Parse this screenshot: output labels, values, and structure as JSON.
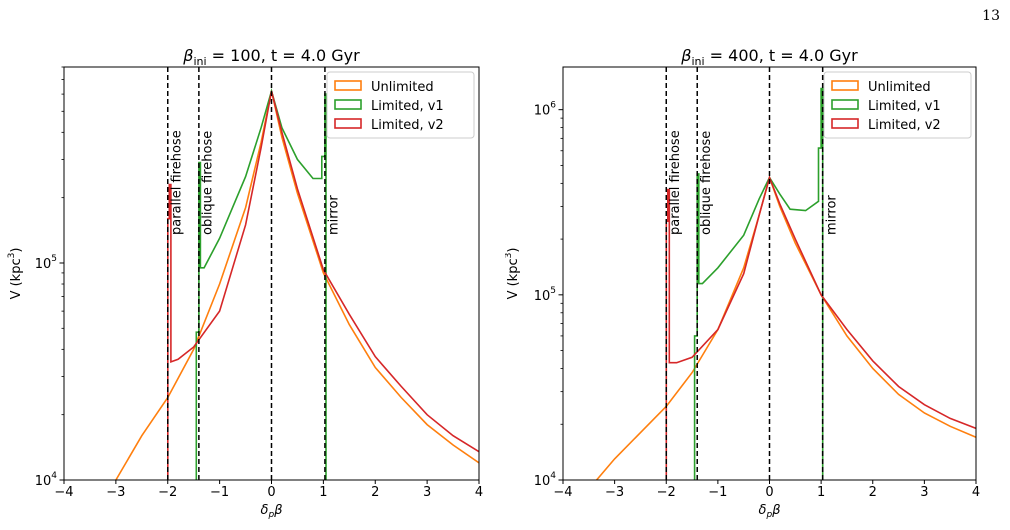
{
  "page_number": "13",
  "chart_data": [
    {
      "type": "line",
      "title_symbol": "β",
      "title_sub": "ini",
      "title_rest": " = 100, t = 4.0 Gyr",
      "xlabel_main": "δ",
      "xlabel_sub": "p",
      "xlabel_after": "β",
      "ylabel_main": "V (kpc",
      "ylabel_sup": "3",
      "ylabel_after": ")",
      "yscale": "log",
      "xlim": [
        -4,
        4
      ],
      "ylim": [
        10000,
        800000
      ],
      "xticks": [
        "−4",
        "−3",
        "−2",
        "−1",
        "0",
        "1",
        "2",
        "3",
        "4"
      ],
      "ytick_labels": [
        {
          "value": 10000,
          "base": "10",
          "exp": "4"
        },
        {
          "value": 100000,
          "base": "10",
          "exp": "5"
        }
      ],
      "legend_position": "top-right",
      "vlines": [
        {
          "x": -2,
          "label": "parallel firehose"
        },
        {
          "x": -1.4,
          "label": "oblique firehose"
        },
        {
          "x": 0,
          "label": ""
        },
        {
          "x": 1.03,
          "label": "mirror"
        }
      ],
      "series": [
        {
          "name": "Unlimited",
          "color": "#ff7f0e",
          "points": [
            [
              -3.0,
              10000
            ],
            [
              -2.5,
              16000
            ],
            [
              -2.0,
              24000
            ],
            [
              -1.5,
              40000
            ],
            [
              -1.0,
              80000
            ],
            [
              -0.5,
              180000
            ],
            [
              -0.2,
              360000
            ],
            [
              0.0,
              620000
            ],
            [
              0.2,
              380000
            ],
            [
              0.5,
              210000
            ],
            [
              1.0,
              90000
            ],
            [
              1.5,
              52000
            ],
            [
              2.0,
              33000
            ],
            [
              2.5,
              24000
            ],
            [
              3.0,
              18000
            ],
            [
              3.5,
              14500
            ],
            [
              4.0,
              12000
            ]
          ]
        },
        {
          "name": "Limited, v1",
          "color": "#2ca02c",
          "points": [
            [
              -1.45,
              10000
            ],
            [
              -1.45,
              48000
            ],
            [
              -1.4,
              48000
            ],
            [
              -1.4,
              290000
            ],
            [
              -1.37,
              290000
            ],
            [
              -1.37,
              95000
            ],
            [
              -1.3,
              95000
            ],
            [
              -1.0,
              130000
            ],
            [
              -0.5,
              250000
            ],
            [
              -0.2,
              420000
            ],
            [
              0.0,
              620000
            ],
            [
              0.2,
              420000
            ],
            [
              0.5,
              300000
            ],
            [
              0.8,
              245000
            ],
            [
              0.97,
              245000
            ],
            [
              0.97,
              310000
            ],
            [
              1.03,
              310000
            ],
            [
              1.03,
              600000
            ],
            [
              1.05,
              600000
            ],
            [
              1.05,
              10000
            ]
          ]
        },
        {
          "name": "Limited, v2",
          "color": "#d62728",
          "points": [
            [
              -2.0,
              10000
            ],
            [
              -2.0,
              160000
            ],
            [
              -1.97,
              160000
            ],
            [
              -1.97,
              230000
            ],
            [
              -1.94,
              230000
            ],
            [
              -1.94,
              35000
            ],
            [
              -1.8,
              36000
            ],
            [
              -1.5,
              41000
            ],
            [
              -1.0,
              60000
            ],
            [
              -0.5,
              150000
            ],
            [
              -0.2,
              340000
            ],
            [
              0.0,
              620000
            ],
            [
              0.2,
              400000
            ],
            [
              0.5,
              220000
            ],
            [
              1.0,
              93000
            ],
            [
              1.5,
              58000
            ],
            [
              2.0,
              37000
            ],
            [
              2.5,
              27000
            ],
            [
              3.0,
              20000
            ],
            [
              3.5,
              16000
            ],
            [
              4.0,
              13500
            ]
          ]
        }
      ]
    },
    {
      "type": "line",
      "title_symbol": "β",
      "title_sub": "ini",
      "title_rest": " = 400, t = 4.0 Gyr",
      "xlabel_main": "δ",
      "xlabel_sub": "p",
      "xlabel_after": "β",
      "ylabel_main": "V (kpc",
      "ylabel_sup": "3",
      "ylabel_after": ")",
      "yscale": "log",
      "xlim": [
        -4,
        4
      ],
      "ylim": [
        10000,
        1700000
      ],
      "xticks": [
        "−4",
        "−3",
        "−2",
        "−1",
        "0",
        "1",
        "2",
        "3",
        "4"
      ],
      "ytick_labels": [
        {
          "value": 10000,
          "base": "10",
          "exp": "4"
        },
        {
          "value": 100000,
          "base": "10",
          "exp": "5"
        },
        {
          "value": 1000000,
          "base": "10",
          "exp": "6"
        }
      ],
      "legend_position": "top-right",
      "vlines": [
        {
          "x": -2,
          "label": "parallel firehose"
        },
        {
          "x": -1.4,
          "label": "oblique firehose"
        },
        {
          "x": 0,
          "label": ""
        },
        {
          "x": 1.03,
          "label": "mirror"
        }
      ],
      "series": [
        {
          "name": "Unlimited",
          "color": "#ff7f0e",
          "points": [
            [
              -3.35,
              10000
            ],
            [
              -3.0,
              13000
            ],
            [
              -2.5,
              18000
            ],
            [
              -2.0,
              25000
            ],
            [
              -1.5,
              38000
            ],
            [
              -1.0,
              65000
            ],
            [
              -0.5,
              140000
            ],
            [
              -0.2,
              270000
            ],
            [
              0.0,
              430000
            ],
            [
              0.2,
              300000
            ],
            [
              0.5,
              190000
            ],
            [
              1.0,
              100000
            ],
            [
              1.5,
              60000
            ],
            [
              2.0,
              40000
            ],
            [
              2.5,
              29000
            ],
            [
              3.0,
              23000
            ],
            [
              3.5,
              19500
            ],
            [
              4.0,
              17000
            ]
          ]
        },
        {
          "name": "Limited, v1",
          "color": "#2ca02c",
          "points": [
            [
              -1.45,
              10000
            ],
            [
              -1.45,
              60000
            ],
            [
              -1.4,
              60000
            ],
            [
              -1.4,
              450000
            ],
            [
              -1.37,
              450000
            ],
            [
              -1.37,
              115000
            ],
            [
              -1.3,
              115000
            ],
            [
              -1.0,
              140000
            ],
            [
              -0.5,
              210000
            ],
            [
              -0.2,
              330000
            ],
            [
              0.0,
              430000
            ],
            [
              0.2,
              350000
            ],
            [
              0.4,
              290000
            ],
            [
              0.7,
              285000
            ],
            [
              0.95,
              320000
            ],
            [
              0.95,
              620000
            ],
            [
              1.0,
              620000
            ],
            [
              1.0,
              1300000
            ],
            [
              1.03,
              1300000
            ],
            [
              1.03,
              10000
            ]
          ]
        },
        {
          "name": "Limited, v2",
          "color": "#d62728",
          "points": [
            [
              -2.0,
              10000
            ],
            [
              -2.0,
              250000
            ],
            [
              -1.97,
              250000
            ],
            [
              -1.97,
              370000
            ],
            [
              -1.94,
              370000
            ],
            [
              -1.94,
              43000
            ],
            [
              -1.8,
              43000
            ],
            [
              -1.5,
              46000
            ],
            [
              -1.0,
              65000
            ],
            [
              -0.5,
              130000
            ],
            [
              -0.2,
              270000
            ],
            [
              0.0,
              430000
            ],
            [
              0.2,
              310000
            ],
            [
              0.5,
              200000
            ],
            [
              1.0,
              100000
            ],
            [
              1.5,
              65000
            ],
            [
              2.0,
              44000
            ],
            [
              2.5,
              32000
            ],
            [
              3.0,
              25500
            ],
            [
              3.5,
              21500
            ],
            [
              4.0,
              19000
            ]
          ]
        }
      ]
    }
  ]
}
